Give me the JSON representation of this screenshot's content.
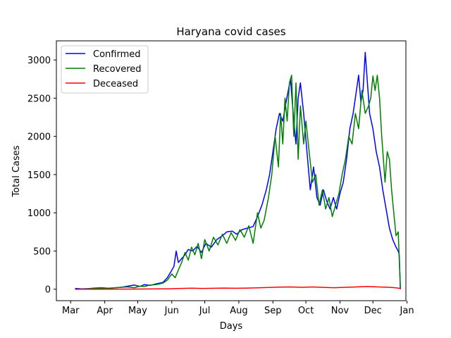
{
  "chart_data": {
    "type": "line",
    "title": "Haryana covid cases",
    "xlabel": "Days",
    "ylabel": "Total Cases",
    "x_ticks": [
      "Mar",
      "Apr",
      "May",
      "Jun",
      "Jul",
      "Aug",
      "Sep",
      "Oct",
      "Nov",
      "Dec",
      "Jan"
    ],
    "y_ticks": [
      0,
      500,
      1000,
      1500,
      2000,
      2500,
      3000
    ],
    "xlim": [
      -13,
      305
    ],
    "ylim": [
      -150,
      3250
    ],
    "grid": false,
    "legend_position": "top-left",
    "x_unit": "days since 1 Mar 2020",
    "series": [
      {
        "name": "Confirmed",
        "color": "#0000ff",
        "points": [
          [
            4,
            10
          ],
          [
            10,
            5
          ],
          [
            16,
            8
          ],
          [
            22,
            15
          ],
          [
            28,
            20
          ],
          [
            34,
            12
          ],
          [
            40,
            18
          ],
          [
            46,
            25
          ],
          [
            52,
            40
          ],
          [
            58,
            55
          ],
          [
            63,
            35
          ],
          [
            67,
            60
          ],
          [
            72,
            50
          ],
          [
            78,
            70
          ],
          [
            84,
            90
          ],
          [
            88,
            150
          ],
          [
            92,
            250
          ],
          [
            94,
            300
          ],
          [
            96,
            500
          ],
          [
            98,
            350
          ],
          [
            101,
            400
          ],
          [
            104,
            450
          ],
          [
            107,
            520
          ],
          [
            111,
            500
          ],
          [
            115,
            560
          ],
          [
            119,
            480
          ],
          [
            123,
            600
          ],
          [
            128,
            550
          ],
          [
            133,
            650
          ],
          [
            138,
            700
          ],
          [
            142,
            750
          ],
          [
            147,
            760
          ],
          [
            151,
            720
          ],
          [
            156,
            780
          ],
          [
            161,
            800
          ],
          [
            166,
            820
          ],
          [
            170,
            950
          ],
          [
            174,
            1100
          ],
          [
            178,
            1300
          ],
          [
            181,
            1500
          ],
          [
            184,
            1800
          ],
          [
            187,
            2100
          ],
          [
            190,
            2300
          ],
          [
            193,
            2200
          ],
          [
            196,
            2450
          ],
          [
            198,
            2600
          ],
          [
            200,
            2750
          ],
          [
            203,
            2200
          ],
          [
            205,
            1900
          ],
          [
            207,
            2500
          ],
          [
            209,
            2700
          ],
          [
            212,
            2300
          ],
          [
            215,
            1800
          ],
          [
            218,
            1300
          ],
          [
            221,
            1600
          ],
          [
            224,
            1200
          ],
          [
            227,
            1100
          ],
          [
            230,
            1300
          ],
          [
            233,
            1150
          ],
          [
            236,
            1050
          ],
          [
            239,
            1200
          ],
          [
            242,
            1050
          ],
          [
            245,
            1250
          ],
          [
            248,
            1400
          ],
          [
            251,
            1700
          ],
          [
            254,
            2100
          ],
          [
            257,
            2300
          ],
          [
            260,
            2600
          ],
          [
            262,
            2800
          ],
          [
            264,
            2450
          ],
          [
            266,
            2600
          ],
          [
            268,
            3100
          ],
          [
            270,
            2700
          ],
          [
            272,
            2300
          ],
          [
            275,
            2100
          ],
          [
            278,
            1800
          ],
          [
            281,
            1600
          ],
          [
            284,
            1300
          ],
          [
            287,
            1050
          ],
          [
            290,
            800
          ],
          [
            293,
            650
          ],
          [
            296,
            550
          ],
          [
            298,
            500
          ],
          [
            299,
            450
          ],
          [
            300,
            0
          ]
        ]
      },
      {
        "name": "Recovered",
        "color": "#008000",
        "points": [
          [
            4,
            0
          ],
          [
            10,
            2
          ],
          [
            16,
            5
          ],
          [
            22,
            10
          ],
          [
            28,
            15
          ],
          [
            34,
            8
          ],
          [
            40,
            20
          ],
          [
            46,
            25
          ],
          [
            52,
            30
          ],
          [
            58,
            20
          ],
          [
            63,
            40
          ],
          [
            67,
            35
          ],
          [
            72,
            55
          ],
          [
            78,
            60
          ],
          [
            84,
            80
          ],
          [
            88,
            120
          ],
          [
            92,
            200
          ],
          [
            95,
            150
          ],
          [
            98,
            250
          ],
          [
            101,
            350
          ],
          [
            104,
            480
          ],
          [
            107,
            380
          ],
          [
            110,
            550
          ],
          [
            113,
            450
          ],
          [
            116,
            600
          ],
          [
            119,
            400
          ],
          [
            122,
            650
          ],
          [
            126,
            500
          ],
          [
            130,
            680
          ],
          [
            134,
            580
          ],
          [
            138,
            720
          ],
          [
            142,
            600
          ],
          [
            146,
            740
          ],
          [
            150,
            640
          ],
          [
            154,
            780
          ],
          [
            158,
            680
          ],
          [
            162,
            830
          ],
          [
            166,
            600
          ],
          [
            170,
            1000
          ],
          [
            173,
            800
          ],
          [
            176,
            900
          ],
          [
            180,
            1200
          ],
          [
            183,
            1500
          ],
          [
            186,
            2000
          ],
          [
            189,
            1600
          ],
          [
            191,
            2300
          ],
          [
            193,
            1900
          ],
          [
            195,
            2500
          ],
          [
            197,
            2200
          ],
          [
            199,
            2700
          ],
          [
            201,
            2800
          ],
          [
            203,
            2000
          ],
          [
            205,
            2700
          ],
          [
            207,
            1700
          ],
          [
            209,
            2400
          ],
          [
            212,
            1900
          ],
          [
            214,
            2200
          ],
          [
            217,
            1800
          ],
          [
            220,
            1400
          ],
          [
            223,
            1500
          ],
          [
            226,
            1100
          ],
          [
            229,
            1300
          ],
          [
            232,
            1050
          ],
          [
            235,
            1200
          ],
          [
            238,
            950
          ],
          [
            241,
            1100
          ],
          [
            244,
            1250
          ],
          [
            247,
            1500
          ],
          [
            250,
            1700
          ],
          [
            253,
            2000
          ],
          [
            256,
            1900
          ],
          [
            259,
            2300
          ],
          [
            262,
            2100
          ],
          [
            265,
            2600
          ],
          [
            268,
            2300
          ],
          [
            271,
            2400
          ],
          [
            273,
            2500
          ],
          [
            275,
            2790
          ],
          [
            277,
            2600
          ],
          [
            279,
            2800
          ],
          [
            281,
            2500
          ],
          [
            283,
            2000
          ],
          [
            286,
            1400
          ],
          [
            288,
            1800
          ],
          [
            290,
            1700
          ],
          [
            292,
            1300
          ],
          [
            294,
            1000
          ],
          [
            296,
            700
          ],
          [
            298,
            750
          ],
          [
            300,
            0
          ]
        ]
      },
      {
        "name": "Deceased",
        "color": "#ff0000",
        "points": [
          [
            4,
            0
          ],
          [
            20,
            0
          ],
          [
            40,
            1
          ],
          [
            60,
            2
          ],
          [
            80,
            4
          ],
          [
            90,
            6
          ],
          [
            100,
            10
          ],
          [
            110,
            14
          ],
          [
            120,
            10
          ],
          [
            130,
            12
          ],
          [
            140,
            15
          ],
          [
            150,
            12
          ],
          [
            160,
            15
          ],
          [
            170,
            18
          ],
          [
            180,
            22
          ],
          [
            190,
            28
          ],
          [
            200,
            30
          ],
          [
            210,
            25
          ],
          [
            220,
            30
          ],
          [
            230,
            24
          ],
          [
            240,
            20
          ],
          [
            250,
            25
          ],
          [
            260,
            30
          ],
          [
            270,
            35
          ],
          [
            280,
            30
          ],
          [
            290,
            25
          ],
          [
            296,
            18
          ],
          [
            300,
            10
          ]
        ]
      }
    ]
  }
}
